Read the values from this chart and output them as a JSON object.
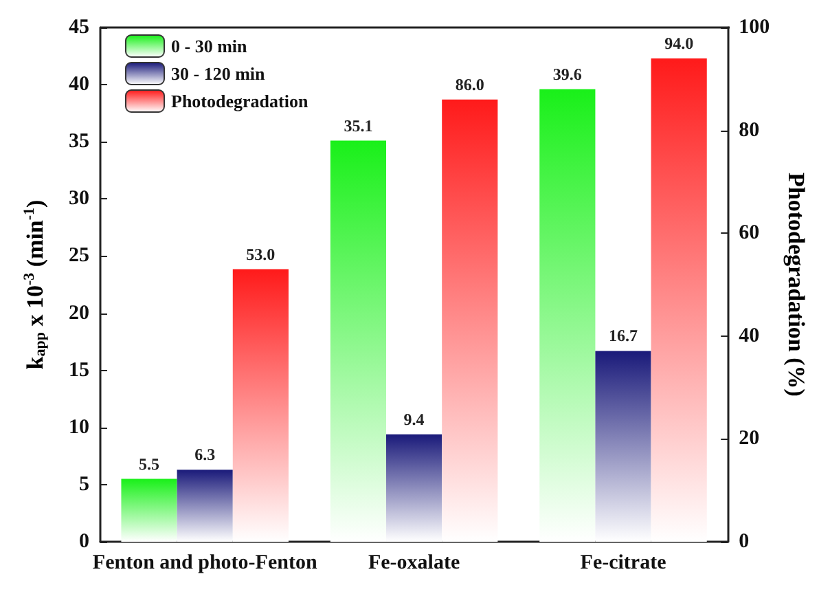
{
  "chart_data": {
    "type": "bar",
    "categories": [
      "Fenton and photo-Fenton",
      "Fe-oxalate",
      "Fe-citrate"
    ],
    "series": [
      {
        "name": "0 - 30 min",
        "color": "#19f019",
        "values": [
          5.5,
          35.1,
          39.6
        ],
        "value_labels": [
          "5.5",
          "35.1",
          "39.6"
        ]
      },
      {
        "name": "30 - 120 min",
        "color": "#1a1a7a",
        "values": [
          6.3,
          9.4,
          16.7
        ],
        "value_labels": [
          "6.3",
          "9.4",
          "16.7"
        ]
      },
      {
        "name": "Photodegradation",
        "color": "#ff1a1a",
        "values": [
          53.0,
          86.0,
          94.0
        ],
        "value_labels": [
          "53.0",
          "86.0",
          "94.0"
        ],
        "axis": "y2"
      }
    ],
    "ylabel": "k$_{app}$ x 10$^{-3}$ (min$^{-1}$)",
    "y2label": "Photodegradation (%)",
    "ylim": [
      0,
      45
    ],
    "yticks": [
      0,
      5,
      10,
      15,
      20,
      25,
      30,
      35,
      40,
      45
    ],
    "y2lim": [
      0,
      100
    ],
    "y2ticks": [
      0,
      20,
      40,
      60,
      80,
      100
    ],
    "grid": false,
    "legend": "top left"
  }
}
